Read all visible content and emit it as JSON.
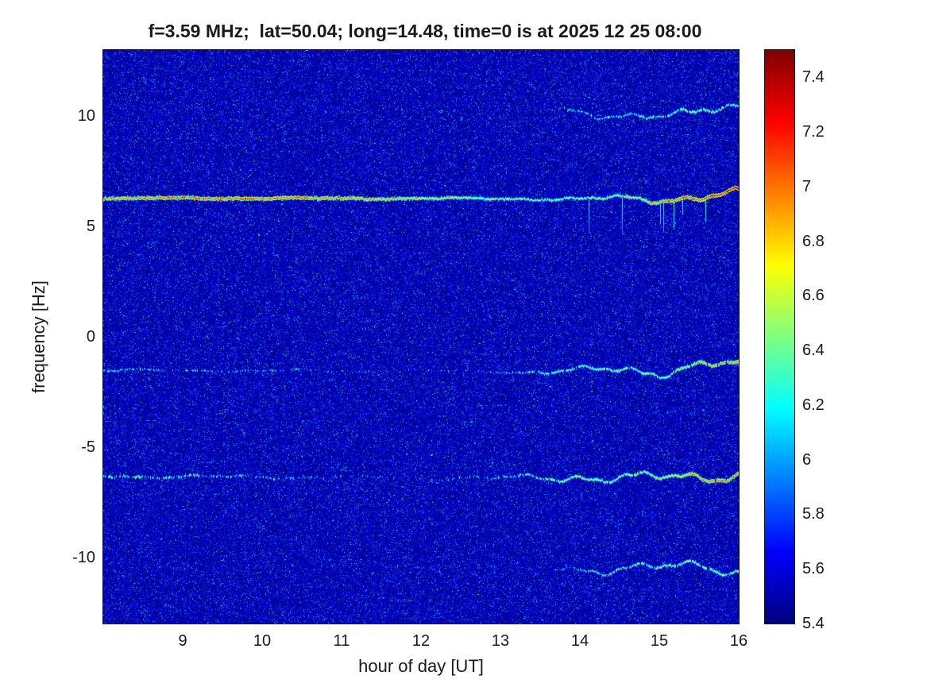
{
  "chart_data": {
    "type": "heatmap",
    "title": "f=3.59 MHz;  lat=50.04; long=14.48, time=0 is at 2025 12 25 08:00",
    "xlabel": "hour of day [UT]",
    "ylabel": "frequency [Hz]",
    "xlim": [
      8,
      16
    ],
    "ylim": [
      -13,
      13
    ],
    "xticks": [
      9,
      10,
      11,
      12,
      13,
      14,
      15,
      16
    ],
    "yticks": [
      10,
      5,
      0,
      -5,
      -10
    ],
    "grid": false,
    "colorbar": {
      "position": "right",
      "colormap": "jet",
      "min": 5.4,
      "max": 7.5,
      "ticks": [
        7.4,
        7.2,
        7,
        6.8,
        6.6,
        6.4,
        6.2,
        6,
        5.8,
        5.6,
        5.4
      ]
    },
    "background_noise": {
      "floor": 5.4,
      "typical": 5.55,
      "speckle_max": 6.7
    },
    "traces": [
      {
        "name": "main-carrier-line",
        "spikes": true,
        "freq": [
          [
            8,
            6.3
          ],
          [
            13.5,
            6.28
          ],
          [
            14,
            6.22
          ],
          [
            14.5,
            6.3
          ],
          [
            15,
            6.28
          ],
          [
            15.5,
            6.33
          ],
          [
            16,
            6.5
          ]
        ],
        "intensity": [
          [
            8,
            7.0
          ],
          [
            9,
            7.1
          ],
          [
            10,
            7.2
          ],
          [
            11,
            7.0
          ],
          [
            12,
            6.8
          ],
          [
            13,
            6.6
          ],
          [
            13.8,
            6.5
          ],
          [
            14.5,
            6.6
          ],
          [
            15,
            7.0
          ],
          [
            15.5,
            7.25
          ],
          [
            16,
            7.3
          ]
        ],
        "visibility": [
          [
            8,
            1
          ],
          [
            16,
            1
          ]
        ],
        "wiggle": [
          [
            8,
            0.02
          ],
          [
            13,
            0.03
          ],
          [
            14,
            0.08
          ],
          [
            15,
            0.14
          ],
          [
            16,
            0.16
          ]
        ]
      },
      {
        "name": "trace-minus-1.5Hz",
        "spikes": false,
        "freq": [
          [
            8,
            -1.5
          ],
          [
            13,
            -1.55
          ],
          [
            14,
            -1.6
          ],
          [
            14.5,
            -1.4
          ],
          [
            15,
            -1.55
          ],
          [
            15.5,
            -1.35
          ],
          [
            16,
            -1.25
          ]
        ],
        "intensity": [
          [
            8,
            6.3
          ],
          [
            10,
            6.2
          ],
          [
            12,
            6.1
          ],
          [
            13,
            6.25
          ],
          [
            13.5,
            6.4
          ],
          [
            14,
            6.5
          ],
          [
            15,
            6.6
          ],
          [
            15.5,
            6.85
          ],
          [
            16,
            7.0
          ]
        ],
        "visibility": [
          [
            8,
            0.5
          ],
          [
            9.5,
            0.45
          ],
          [
            10.5,
            0.28
          ],
          [
            11,
            0.14
          ],
          [
            12,
            0.1
          ],
          [
            13,
            0.3
          ],
          [
            13.4,
            0.75
          ],
          [
            14,
            0.9
          ],
          [
            16,
            0.95
          ]
        ],
        "wiggle": [
          [
            8,
            0.04
          ],
          [
            13,
            0.06
          ],
          [
            14,
            0.16
          ],
          [
            15,
            0.2
          ],
          [
            16,
            0.18
          ]
        ]
      },
      {
        "name": "trace-minus-6.3Hz",
        "spikes": false,
        "freq": [
          [
            8,
            -6.3
          ],
          [
            13,
            -6.4
          ],
          [
            14,
            -6.3
          ],
          [
            14.7,
            -6.5
          ],
          [
            15.3,
            -6.3
          ],
          [
            16,
            -6.2
          ]
        ],
        "intensity": [
          [
            8,
            6.5
          ],
          [
            9,
            6.4
          ],
          [
            10,
            6.3
          ],
          [
            11,
            6.15
          ],
          [
            12,
            6.1
          ],
          [
            13,
            6.3
          ],
          [
            13.5,
            6.5
          ],
          [
            14,
            6.6
          ],
          [
            15,
            6.7
          ],
          [
            15.5,
            7.0
          ],
          [
            16,
            7.1
          ]
        ],
        "visibility": [
          [
            8,
            0.75
          ],
          [
            9,
            0.6
          ],
          [
            10,
            0.45
          ],
          [
            11,
            0.2
          ],
          [
            12,
            0.14
          ],
          [
            13,
            0.35
          ],
          [
            13.5,
            0.85
          ],
          [
            14,
            0.95
          ],
          [
            16,
            1
          ]
        ],
        "wiggle": [
          [
            8,
            0.05
          ],
          [
            13,
            0.07
          ],
          [
            14,
            0.2
          ],
          [
            15,
            0.24
          ],
          [
            16,
            0.2
          ]
        ]
      },
      {
        "name": "trace-minus-10.5Hz",
        "spikes": false,
        "freq": [
          [
            8,
            -10.4
          ],
          [
            13.8,
            -10.4
          ],
          [
            14.3,
            -10.6
          ],
          [
            15,
            -10.5
          ],
          [
            15.5,
            -10.25
          ],
          [
            15.8,
            -10.4
          ],
          [
            16,
            -10.6
          ]
        ],
        "intensity": [
          [
            8,
            6.0
          ],
          [
            13.5,
            6.05
          ],
          [
            14,
            6.3
          ],
          [
            15,
            6.5
          ],
          [
            15.5,
            6.6
          ],
          [
            16,
            6.55
          ]
        ],
        "visibility": [
          [
            8,
            0.03
          ],
          [
            13.5,
            0.08
          ],
          [
            13.9,
            0.55
          ],
          [
            14.3,
            0.85
          ],
          [
            16,
            0.9
          ]
        ],
        "wiggle": [
          [
            8,
            0.04
          ],
          [
            14,
            0.14
          ],
          [
            15,
            0.2
          ],
          [
            16,
            0.24
          ]
        ]
      },
      {
        "name": "trace-plus-10.2Hz",
        "spikes": false,
        "freq": [
          [
            8,
            10.3
          ],
          [
            13.7,
            10.2
          ],
          [
            14.2,
            10.0
          ],
          [
            14.8,
            10.2
          ],
          [
            15.4,
            10.05
          ],
          [
            16,
            10.4
          ]
        ],
        "intensity": [
          [
            8,
            6.0
          ],
          [
            13.5,
            6.1
          ],
          [
            14,
            6.3
          ],
          [
            15,
            6.4
          ],
          [
            15.5,
            6.6
          ],
          [
            16,
            6.5
          ]
        ],
        "visibility": [
          [
            8,
            0.03
          ],
          [
            13.6,
            0.1
          ],
          [
            14,
            0.65
          ],
          [
            14.5,
            0.85
          ],
          [
            16,
            0.9
          ]
        ],
        "wiggle": [
          [
            8,
            0.04
          ],
          [
            14,
            0.14
          ],
          [
            15,
            0.2
          ],
          [
            16,
            0.2
          ]
        ]
      }
    ]
  }
}
